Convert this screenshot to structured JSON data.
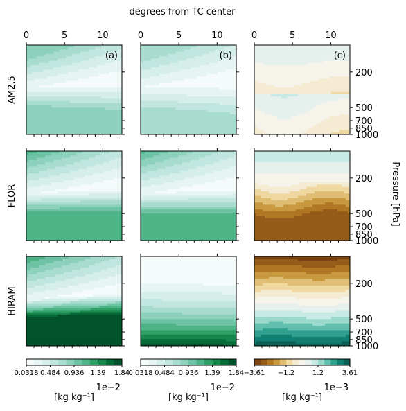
{
  "figure": {
    "top_xlabel": "degrees from TC center",
    "right_ylabel": "Pressure [hPa]",
    "row_labels": [
      "AM2.5",
      "FLOR",
      "HIRAM"
    ],
    "panel_tags": [
      "(a)",
      "(b)",
      "(c)"
    ],
    "x_ticks": [
      "0",
      "5",
      "10"
    ],
    "y_ticks": [
      "200",
      "500",
      "700",
      "850",
      "1000"
    ]
  },
  "colors": {
    "green_ramp": [
      "#f4fbfa",
      "#e6f5f3",
      "#d5eeea",
      "#c1e6df",
      "#a8dccf",
      "#8dd1bd",
      "#6dc3a4",
      "#4eb487",
      "#2f9f66",
      "#18874c",
      "#056c38",
      "#00532a"
    ],
    "diverging_ramp": [
      "#7b4410",
      "#955b18",
      "#b07725",
      "#c9993f",
      "#dfbd72",
      "#efd9a0",
      "#f5ebd3",
      "#f6f3ea",
      "#e6f1ee",
      "#c9eae4",
      "#9bd8cc",
      "#62bfae",
      "#2f9f8e",
      "#137e72",
      "#0b5f55"
    ]
  },
  "colorbars": [
    {
      "ticks": [
        "0.0318",
        "0.484",
        "0.936",
        "1.39",
        "1.84"
      ],
      "scale": "1e−2",
      "unit": "[kg kg⁻¹]"
    },
    {
      "ticks": [
        "0.0318",
        "0.484",
        "0.936",
        "1.39",
        "1.84"
      ],
      "scale": "1e−2",
      "unit": "[kg kg⁻¹]"
    },
    {
      "ticks": [
        "−3.61",
        "−1.2",
        "1.2",
        "3.61"
      ],
      "scale": "1e−3",
      "unit": "[kg kg⁻¹]"
    }
  ],
  "chart_data": {
    "type": "heatmap",
    "title": "",
    "xlabel": "degrees from TC center",
    "ylabel": "Pressure [hPa]",
    "xlim": [
      0,
      12.5
    ],
    "ylim": [
      1000,
      100
    ],
    "y_scale": "log",
    "rows": [
      "AM2.5",
      "FLOR",
      "HIRAM"
    ],
    "columns": [
      "(a)",
      "(b)",
      "(c)"
    ],
    "colorbar_ranges": [
      [
        0.000318,
        0.0184
      ],
      [
        0.000318,
        0.0184
      ],
      [
        -0.00361,
        0.00361
      ]
    ],
    "colorbar_units": "kg kg⁻¹",
    "panels": [
      {
        "row": "AM2.5",
        "column": "(a)",
        "min": 0.0003,
        "max": 0.006
      },
      {
        "row": "AM2.5",
        "column": "(b)",
        "min": 0.0003,
        "max": 0.006
      },
      {
        "row": "AM2.5",
        "column": "(c)",
        "min": -0.0013,
        "max": 0.0008
      },
      {
        "row": "FLOR",
        "column": "(a)",
        "min": 0.0003,
        "max": 0.009
      },
      {
        "row": "FLOR",
        "column": "(b)",
        "min": 0.0003,
        "max": 0.008
      },
      {
        "row": "FLOR",
        "column": "(c)",
        "min": -0.0028,
        "max": 0.0011
      },
      {
        "row": "HIRAM",
        "column": "(a)",
        "min": 0.0003,
        "max": 0.015
      },
      {
        "row": "HIRAM",
        "column": "(b)",
        "min": 0.0003,
        "max": 0.0184
      },
      {
        "row": "HIRAM",
        "column": "(c)",
        "min": -0.0036,
        "max": 0.0036
      }
    ]
  }
}
